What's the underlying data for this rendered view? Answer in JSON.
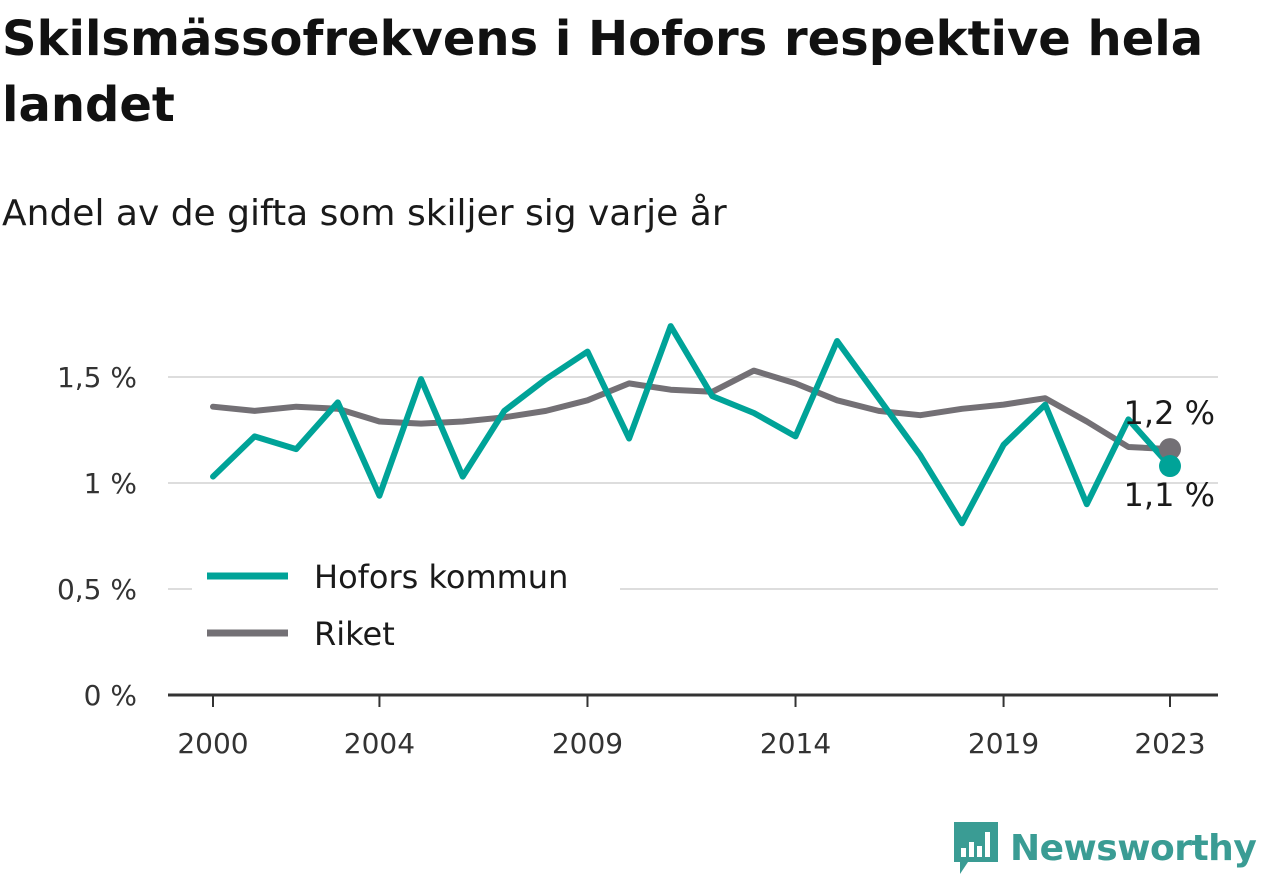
{
  "chart_data": {
    "type": "line",
    "title": "Skilsmässofrekvens i Hofors respektive hela landet",
    "subtitle": "Andel av de gifta som skiljer sig varje år",
    "x": [
      2000,
      2001,
      2002,
      2003,
      2004,
      2005,
      2006,
      2007,
      2008,
      2009,
      2010,
      2011,
      2012,
      2013,
      2014,
      2015,
      2016,
      2017,
      2018,
      2019,
      2020,
      2021,
      2022,
      2023
    ],
    "x_tick_labels": [
      {
        "value": 2000,
        "label": "2000"
      },
      {
        "value": 2004,
        "label": "2004"
      },
      {
        "value": 2009,
        "label": "2009"
      },
      {
        "value": 2014,
        "label": "2014"
      },
      {
        "value": 2019,
        "label": "2019"
      },
      {
        "value": 2023,
        "label": "2023"
      }
    ],
    "y_tick_labels": [
      {
        "value": 0,
        "label": "0 %"
      },
      {
        "value": 0.5,
        "label": "0,5 %"
      },
      {
        "value": 1.0,
        "label": "1 %"
      },
      {
        "value": 1.5,
        "label": "1,5 %"
      }
    ],
    "ylim": [
      0,
      1.75
    ],
    "grid": true,
    "legend_position": "bottom-left",
    "series": [
      {
        "name": "Hofors kommun",
        "color": "#00a398",
        "values": [
          1.03,
          1.22,
          1.16,
          1.38,
          0.94,
          1.49,
          1.03,
          1.34,
          1.49,
          1.62,
          1.21,
          1.74,
          1.41,
          1.33,
          1.22,
          1.67,
          1.4,
          1.13,
          0.81,
          1.18,
          1.37,
          0.9,
          1.3,
          1.08
        ],
        "end_label": "1,1 %"
      },
      {
        "name": "Riket",
        "color": "#737075",
        "values": [
          1.36,
          1.34,
          1.36,
          1.35,
          1.29,
          1.28,
          1.29,
          1.31,
          1.34,
          1.39,
          1.47,
          1.44,
          1.43,
          1.53,
          1.47,
          1.39,
          1.34,
          1.32,
          1.35,
          1.37,
          1.4,
          1.29,
          1.17,
          1.16
        ],
        "end_label": "1,2 %"
      }
    ]
  },
  "brand": {
    "name": "Newsworthy",
    "color": "#3a9c94"
  }
}
